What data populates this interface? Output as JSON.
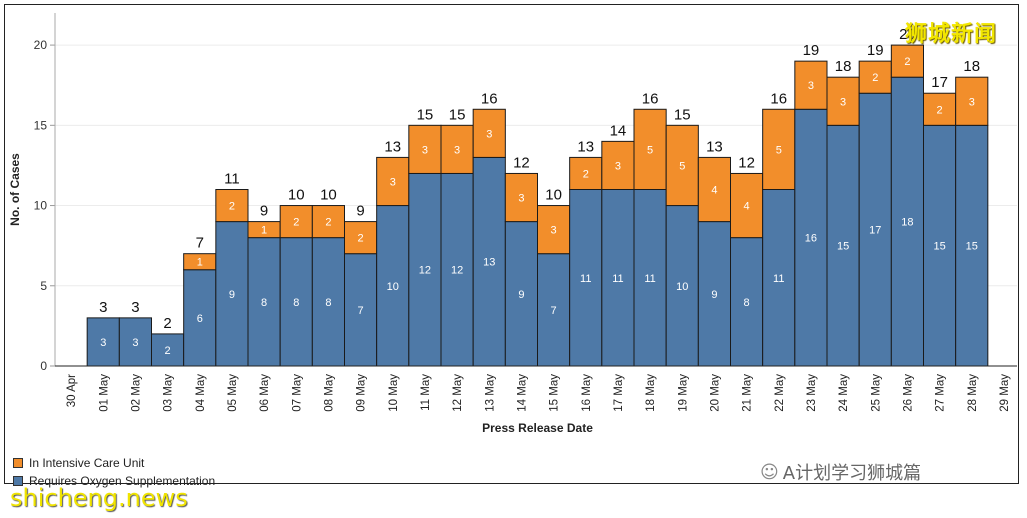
{
  "chart_data": {
    "type": "bar",
    "stacked": true,
    "categories": [
      "30 Apr",
      "01 May",
      "02 May",
      "03 May",
      "04 May",
      "05 May",
      "06 May",
      "07 May",
      "08 May",
      "09 May",
      "10 May",
      "11 May",
      "12 May",
      "13 May",
      "14 May",
      "15 May",
      "16 May",
      "17 May",
      "18 May",
      "19 May",
      "20 May",
      "21 May",
      "22 May",
      "23 May",
      "24 May",
      "25 May",
      "26 May",
      "27 May",
      "28 May",
      "29 May"
    ],
    "series": [
      {
        "name": "Requires Oxygen Supplementation",
        "color": "#4e79a7",
        "values": [
          null,
          3,
          3,
          2,
          6,
          9,
          8,
          8,
          8,
          7,
          10,
          12,
          12,
          13,
          9,
          7,
          11,
          11,
          11,
          10,
          9,
          8,
          11,
          16,
          15,
          17,
          18,
          15,
          15,
          null
        ]
      },
      {
        "name": "In Intensive Care Unit",
        "color": "#f28e2b",
        "values": [
          null,
          0,
          0,
          0,
          1,
          2,
          1,
          2,
          2,
          2,
          3,
          3,
          3,
          3,
          3,
          3,
          2,
          3,
          5,
          5,
          4,
          4,
          5,
          3,
          3,
          2,
          2,
          2,
          3,
          null
        ]
      }
    ],
    "totals": [
      null,
      3,
      3,
      2,
      7,
      11,
      9,
      10,
      10,
      9,
      13,
      15,
      15,
      16,
      12,
      10,
      13,
      14,
      16,
      15,
      13,
      12,
      16,
      19,
      18,
      19,
      20,
      17,
      18,
      null
    ],
    "title": "",
    "xlabel": "Press Release Date",
    "ylabel": "No. of Cases",
    "ylim": [
      0,
      22
    ],
    "yticks": [
      0,
      5,
      10,
      15,
      20
    ],
    "grid": true,
    "legend_position": "bottom-left"
  },
  "legend": {
    "icu": "In Intensive Care Unit",
    "oxygen": "Requires Oxygen Supplementation"
  },
  "watermarks": {
    "top_right": "狮城新闻",
    "bottom_left": "shicheng.news",
    "wechat": "A计划学习狮城篇"
  }
}
